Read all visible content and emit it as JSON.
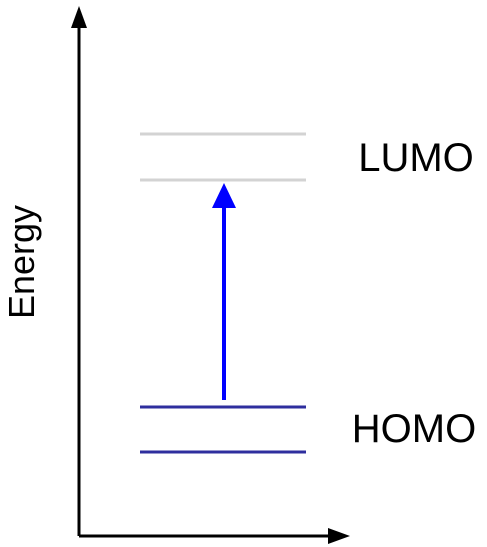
{
  "diagram": {
    "axis_label": "Energy",
    "lumo_label": "LUMO",
    "homo_label": "HOMO"
  },
  "colors": {
    "axis": "#000000",
    "lumo_lines": "#d3d3d3",
    "homo_lines": "#2e2e9e",
    "transition_arrow": "#0000ff"
  }
}
